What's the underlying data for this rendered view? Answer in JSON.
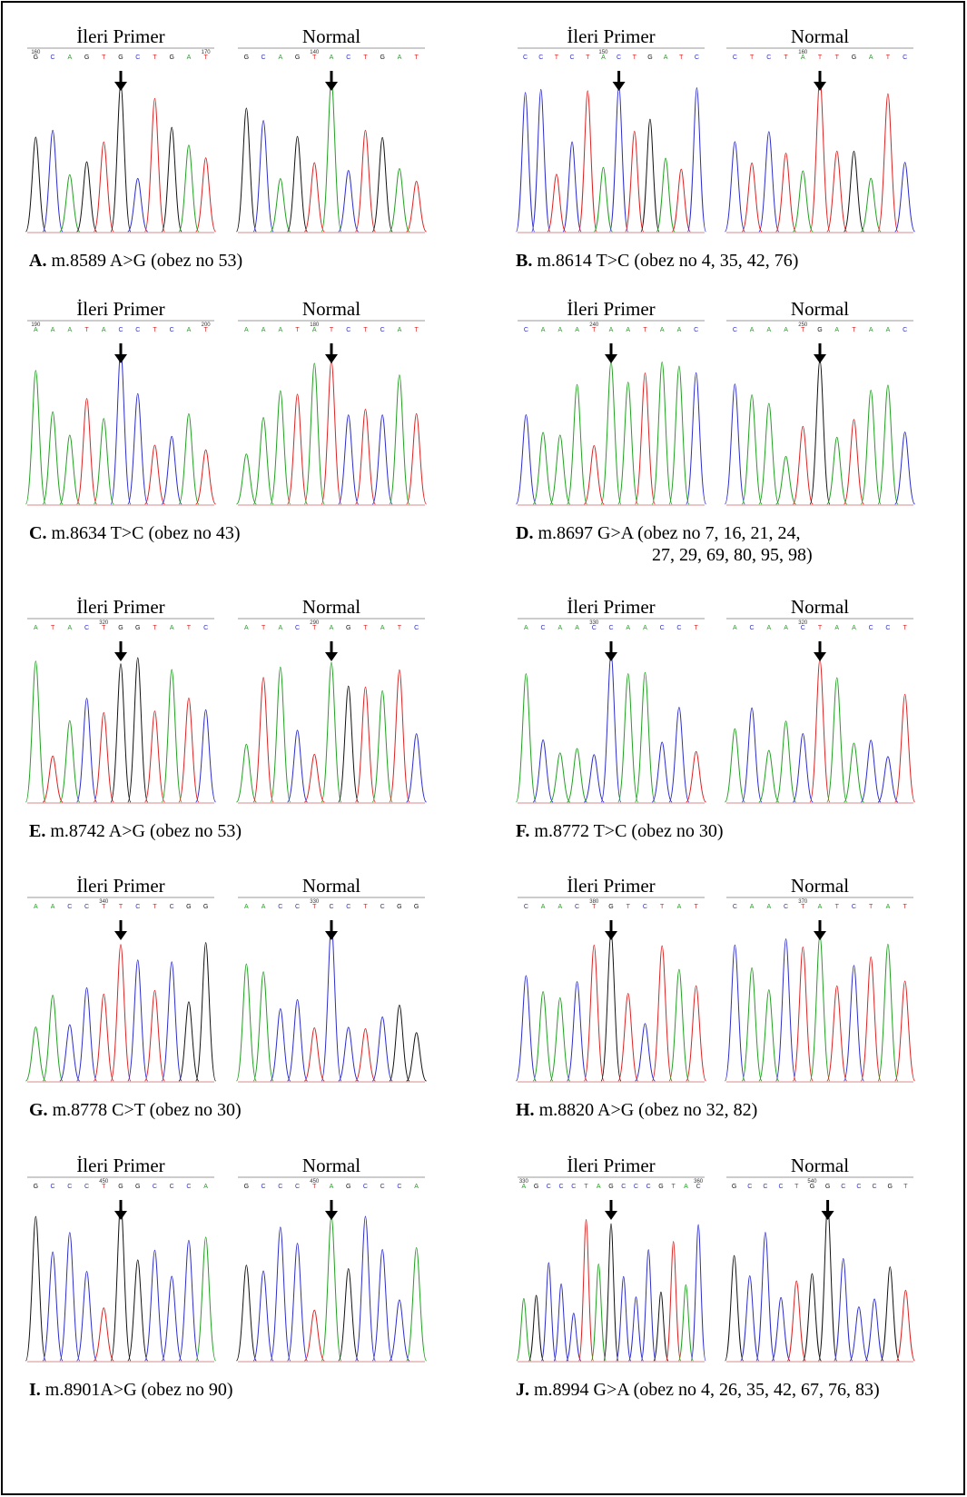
{
  "panels": [
    {
      "letter": "A.",
      "caption": [
        "m.8589 A>G (obez no 53)"
      ],
      "traces": [
        {
          "title": "İleri Primer",
          "bases": [
            "G",
            "C",
            "A",
            "G",
            "T",
            "G",
            "C",
            "T",
            "G",
            "A",
            "T"
          ],
          "positions": [
            "160",
            "170"
          ]
        },
        {
          "title": "Normal",
          "bases": [
            "G",
            "C",
            "A",
            "G",
            "T",
            "A",
            "C",
            "T",
            "G",
            "A",
            "T"
          ],
          "positions": [
            "140"
          ]
        }
      ]
    },
    {
      "letter": "B.",
      "caption": [
        "m.8614 T>C (obez no 4, 35, 42, 76)"
      ],
      "traces": [
        {
          "title": "İleri Primer",
          "bases": [
            "C",
            "C",
            "T",
            "C",
            "T",
            "A",
            "C",
            "T",
            "G",
            "A",
            "T",
            "C"
          ],
          "positions": [
            "150"
          ]
        },
        {
          "title": "Normal",
          "bases": [
            "C",
            "T",
            "C",
            "T",
            "A",
            "T",
            "T",
            "G",
            "A",
            "T",
            "C"
          ],
          "positions": [
            "160"
          ]
        }
      ]
    },
    {
      "letter": "C.",
      "caption": [
        "m.8634 T>C (obez no 43)"
      ],
      "traces": [
        {
          "title": "İleri Primer",
          "bases": [
            "A",
            "A",
            "A",
            "T",
            "A",
            "C",
            "C",
            "T",
            "C",
            "A",
            "T"
          ],
          "positions": [
            "190",
            "200"
          ]
        },
        {
          "title": "Normal",
          "bases": [
            "A",
            "A",
            "A",
            "T",
            "A",
            "T",
            "C",
            "T",
            "C",
            "A",
            "T"
          ],
          "positions": [
            "180"
          ]
        }
      ]
    },
    {
      "letter": "D.",
      "caption": [
        "m.8697 G>A (obez  no 7, 16, 21, 24,",
        "27, 29, 69, 80, 95, 98)"
      ],
      "traces": [
        {
          "title": "İleri Primer",
          "bases": [
            "C",
            "A",
            "A",
            "A",
            "T",
            "A",
            "A",
            "T",
            "A",
            "A",
            "C"
          ],
          "positions": [
            "240"
          ]
        },
        {
          "title": "Normal",
          "bases": [
            "C",
            "A",
            "A",
            "A",
            "T",
            "G",
            "A",
            "T",
            "A",
            "A",
            "C"
          ],
          "positions": [
            "250"
          ]
        }
      ]
    },
    {
      "letter": "E.",
      "caption": [
        "m.8742 A>G (obez no 53)"
      ],
      "traces": [
        {
          "title": "İleri Primer",
          "bases": [
            "A",
            "T",
            "A",
            "C",
            "T",
            "G",
            "G",
            "T",
            "A",
            "T",
            "C"
          ],
          "positions": [
            "320"
          ]
        },
        {
          "title": "Normal",
          "bases": [
            "A",
            "T",
            "A",
            "C",
            "T",
            "A",
            "G",
            "T",
            "A",
            "T",
            "C"
          ],
          "positions": [
            "290"
          ]
        }
      ]
    },
    {
      "letter": "F.",
      "caption": [
        "m.8772 T>C (obez no 30)"
      ],
      "traces": [
        {
          "title": "İleri Primer",
          "bases": [
            "A",
            "C",
            "A",
            "A",
            "C",
            "C",
            "A",
            "A",
            "C",
            "C",
            "T"
          ],
          "positions": [
            "330"
          ]
        },
        {
          "title": "Normal",
          "bases": [
            "A",
            "C",
            "A",
            "A",
            "C",
            "T",
            "A",
            "A",
            "C",
            "C",
            "T"
          ],
          "positions": [
            "320"
          ]
        }
      ]
    },
    {
      "letter": "G.",
      "caption": [
        "m.8778 C>T (obez no 30)"
      ],
      "traces": [
        {
          "title": "İleri Primer",
          "bases": [
            "A",
            "A",
            "C",
            "C",
            "T",
            "T",
            "C",
            "T",
            "C",
            "G",
            "G"
          ],
          "positions": [
            "340"
          ]
        },
        {
          "title": "Normal",
          "bases": [
            "A",
            "A",
            "C",
            "C",
            "T",
            "C",
            "C",
            "T",
            "C",
            "G",
            "G"
          ],
          "positions": [
            "330"
          ]
        }
      ]
    },
    {
      "letter": "H.",
      "caption": [
        "m.8820 A>G (obez no 32, 82)"
      ],
      "traces": [
        {
          "title": "İleri Primer",
          "bases": [
            "C",
            "A",
            "A",
            "C",
            "T",
            "G",
            "T",
            "C",
            "T",
            "A",
            "T"
          ],
          "positions": [
            "380"
          ]
        },
        {
          "title": "Normal",
          "bases": [
            "C",
            "A",
            "A",
            "C",
            "T",
            "A",
            "T",
            "C",
            "T",
            "A",
            "T"
          ],
          "positions": [
            "370"
          ]
        }
      ]
    },
    {
      "letter": "I.",
      "caption": [
        "m.8901A>G (obez no 90)"
      ],
      "traces": [
        {
          "title": "İleri Primer",
          "bases": [
            "G",
            "C",
            "C",
            "C",
            "T",
            "G",
            "G",
            "C",
            "C",
            "C",
            "A"
          ],
          "positions": [
            "450"
          ]
        },
        {
          "title": "Normal",
          "bases": [
            "G",
            "C",
            "C",
            "C",
            "T",
            "A",
            "G",
            "C",
            "C",
            "C",
            "A"
          ],
          "positions": [
            "450"
          ]
        }
      ]
    },
    {
      "letter": "J.",
      "caption": [
        "m.8994 G>A (obez no 4, 26, 35, 42, 67, 76, 83)"
      ],
      "traces": [
        {
          "title": "İleri Primer",
          "bases": [
            "A",
            "G",
            "C",
            "C",
            "C",
            "T",
            "A",
            "G",
            "C",
            "C",
            "C",
            "G",
            "T",
            "A",
            "C"
          ],
          "positions": [
            "330",
            "360"
          ]
        },
        {
          "title": "Normal",
          "bases": [
            "G",
            "C",
            "C",
            "C",
            "T",
            "G",
            "G",
            "C",
            "C",
            "C",
            "G",
            "T"
          ],
          "positions": [
            "540"
          ]
        }
      ]
    }
  ]
}
